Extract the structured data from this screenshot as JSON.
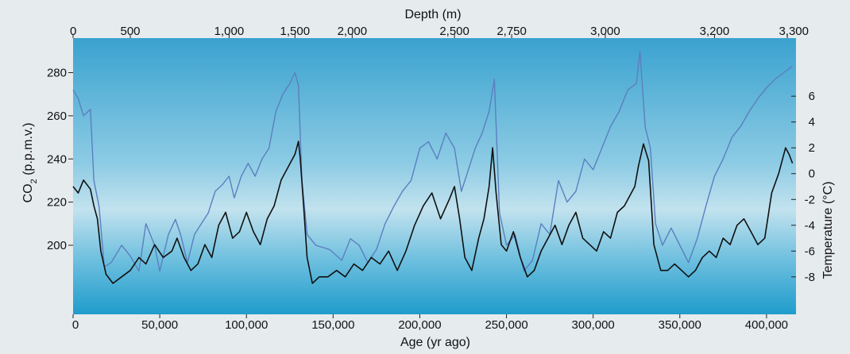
{
  "chart_data": {
    "type": "line",
    "top_axis": {
      "label": "Depth (m)",
      "ticks": [
        {
          "age": 0,
          "label": "0"
        },
        {
          "age": 33000,
          "label": "500"
        },
        {
          "age": 90000,
          "label": "1,000"
        },
        {
          "age": 128000,
          "label": "1,500"
        },
        {
          "age": 161000,
          "label": "2,000"
        },
        {
          "age": 220000,
          "label": "2,500"
        },
        {
          "age": 253000,
          "label": "2,750"
        },
        {
          "age": 307000,
          "label": "3,000"
        },
        {
          "age": 370000,
          "label": "3,200"
        },
        {
          "age": 412000,
          "label": "3,300"
        }
      ]
    },
    "x_axis": {
      "label": "Age (yr ago)",
      "range": [
        0,
        417000
      ],
      "ticks": [
        {
          "value": 0,
          "label": "0"
        },
        {
          "value": 50000,
          "label": "50,000"
        },
        {
          "value": 100000,
          "label": "100,000"
        },
        {
          "value": 150000,
          "label": "150,000"
        },
        {
          "value": 200000,
          "label": "200,000"
        },
        {
          "value": 250000,
          "label": "250,000"
        },
        {
          "value": 300000,
          "label": "300,000"
        },
        {
          "value": 350000,
          "label": "350,000"
        },
        {
          "value": 400000,
          "label": "400,000"
        }
      ]
    },
    "left_axis": {
      "label_main": "CO",
      "label_sub": "2",
      "label_rest": " (p.p.m.v.)",
      "range": [
        168,
        296
      ],
      "ticks": [
        200,
        220,
        240,
        260,
        280
      ]
    },
    "right_axis": {
      "label": "Temperature (°C)",
      "range": [
        -10.9,
        10.5
      ],
      "ticks": [
        {
          "value": 6,
          "label": "6"
        },
        {
          "value": 4,
          "label": "4"
        },
        {
          "value": 2,
          "label": "2"
        },
        {
          "value": 0,
          "label": "0"
        },
        {
          "value": -2,
          "label": "-2"
        },
        {
          "value": -4,
          "label": "-4"
        },
        {
          "value": -6,
          "label": "-6"
        },
        {
          "value": -8,
          "label": "-8"
        }
      ]
    },
    "series": [
      {
        "key": "co2",
        "axis": "left",
        "color": "#5b7fc0",
        "x": [
          0,
          3000,
          6000,
          10000,
          12000,
          15000,
          18000,
          22000,
          28000,
          33000,
          38000,
          42000,
          47000,
          50000,
          55000,
          59000,
          62000,
          66000,
          70000,
          74000,
          78000,
          82000,
          86000,
          90000,
          93000,
          97000,
          101000,
          105000,
          109000,
          113000,
          117000,
          121000,
          125000,
          128000,
          130000,
          132000,
          135000,
          140000,
          148000,
          155000,
          160000,
          165000,
          170000,
          175000,
          180000,
          185000,
          190000,
          195000,
          200000,
          205000,
          210000,
          215000,
          220000,
          224000,
          228000,
          232000,
          236000,
          240000,
          243000,
          246000,
          250000,
          255000,
          260000,
          265000,
          270000,
          275000,
          280000,
          285000,
          290000,
          295000,
          300000,
          305000,
          310000,
          315000,
          320000,
          325000,
          327000,
          330000,
          333000,
          336000,
          340000,
          345000,
          350000,
          355000,
          360000,
          365000,
          370000,
          375000,
          380000,
          385000,
          390000,
          395000,
          400000,
          405000,
          410000,
          415000
        ],
        "values": [
          272,
          268,
          260,
          263,
          230,
          218,
          190,
          192,
          200,
          195,
          188,
          210,
          200,
          188,
          205,
          212,
          205,
          192,
          205,
          210,
          215,
          225,
          228,
          232,
          222,
          232,
          238,
          232,
          240,
          245,
          262,
          270,
          275,
          280,
          274,
          230,
          205,
          200,
          198,
          193,
          203,
          200,
          192,
          198,
          210,
          218,
          225,
          230,
          245,
          248,
          240,
          252,
          245,
          225,
          235,
          245,
          252,
          262,
          277,
          215,
          200,
          205,
          188,
          193,
          210,
          205,
          230,
          220,
          225,
          240,
          235,
          245,
          255,
          262,
          272,
          275,
          290,
          255,
          245,
          210,
          200,
          208,
          200,
          192,
          203,
          218,
          232,
          240,
          250,
          255,
          262,
          268,
          273,
          277,
          280,
          283
        ]
      },
      {
        "key": "temperature",
        "axis": "right",
        "color": "#111111",
        "x": [
          0,
          3000,
          6000,
          10000,
          12000,
          14000,
          16000,
          19000,
          23000,
          28000,
          33000,
          38000,
          42000,
          47000,
          52000,
          57000,
          60000,
          64000,
          68000,
          72000,
          76000,
          80000,
          84000,
          88000,
          92000,
          96000,
          100000,
          104000,
          108000,
          112000,
          116000,
          120000,
          124000,
          128000,
          130000,
          131000,
          133000,
          135000,
          138000,
          142000,
          147000,
          152000,
          157000,
          162000,
          167000,
          172000,
          177000,
          182000,
          187000,
          192000,
          197000,
          202000,
          207000,
          212000,
          217000,
          220000,
          223000,
          226000,
          230000,
          234000,
          237000,
          240000,
          242000,
          244000,
          247000,
          250000,
          254000,
          258000,
          262000,
          266000,
          270000,
          274000,
          278000,
          282000,
          286000,
          290000,
          294000,
          298000,
          302000,
          306000,
          310000,
          314000,
          318000,
          322000,
          324000,
          326000,
          329000,
          332000,
          335000,
          339000,
          343000,
          347000,
          351000,
          355000,
          359000,
          363000,
          367000,
          371000,
          375000,
          379000,
          383000,
          387000,
          391000,
          395000,
          399000,
          403000,
          407000,
          411000,
          413000,
          415000
        ],
        "values": [
          -1.0,
          -1.5,
          -0.5,
          -1.2,
          -2.5,
          -3.5,
          -6.0,
          -7.8,
          -8.5,
          -8.0,
          -7.5,
          -6.5,
          -7.0,
          -5.5,
          -6.5,
          -6.0,
          -5.0,
          -6.5,
          -7.5,
          -7.0,
          -5.5,
          -6.5,
          -4.0,
          -3.0,
          -5.0,
          -4.5,
          -3.0,
          -4.5,
          -5.5,
          -3.5,
          -2.5,
          -0.5,
          0.5,
          1.5,
          2.5,
          1.2,
          -2.5,
          -6.5,
          -8.5,
          -8.0,
          -8.0,
          -7.5,
          -8.0,
          -7.0,
          -7.5,
          -6.5,
          -7.0,
          -6.0,
          -7.5,
          -6.0,
          -4.0,
          -2.5,
          -1.5,
          -3.5,
          -2.0,
          -1.0,
          -3.5,
          -6.5,
          -7.5,
          -5.0,
          -3.5,
          -1.0,
          2.0,
          -1.5,
          -5.5,
          -6.0,
          -4.5,
          -6.5,
          -8.0,
          -7.5,
          -6.0,
          -5.0,
          -4.0,
          -5.5,
          -4.0,
          -3.0,
          -5.0,
          -5.5,
          -6.0,
          -4.5,
          -5.0,
          -3.0,
          -2.5,
          -1.5,
          -1.0,
          0.5,
          2.3,
          1.0,
          -5.5,
          -7.5,
          -7.5,
          -7.0,
          -7.5,
          -8.0,
          -7.5,
          -6.5,
          -6.0,
          -6.5,
          -5.0,
          -5.5,
          -4.0,
          -3.5,
          -4.5,
          -5.5,
          -5.0,
          -1.5,
          0.0,
          2.0,
          1.5,
          0.8
        ]
      }
    ]
  }
}
